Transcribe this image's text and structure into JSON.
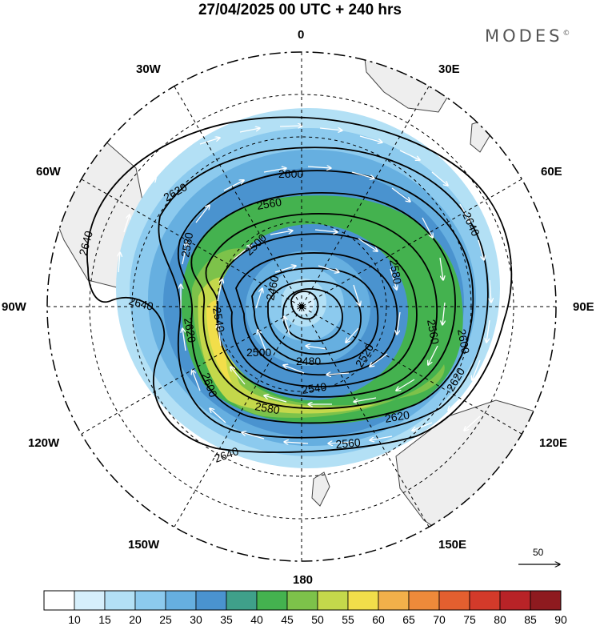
{
  "header": {
    "title": "27/04/2025  00 UTC  + 240 hrs",
    "brand": "MODES",
    "brand_mark": "©"
  },
  "map": {
    "projection": "south-polar-stereographic",
    "longitude_labels": {
      "top": "0",
      "top_right": "30E",
      "right_upper": "60E",
      "right": "90E",
      "right_lower": "120E",
      "bottom_right": "150E",
      "bottom": "180",
      "bottom_left": "150W",
      "left_lower": "120W",
      "left": "90W",
      "left_upper": "60W",
      "top_left": "30W"
    },
    "contour_labels": [
      {
        "id": "c2600a",
        "text": "2600"
      },
      {
        "id": "c2620a",
        "text": "2620"
      },
      {
        "id": "c2640a",
        "text": "2640"
      },
      {
        "id": "c2640b",
        "text": "2640"
      },
      {
        "id": "c2640c",
        "text": "2640"
      },
      {
        "id": "c2640d",
        "text": "2640"
      },
      {
        "id": "c2560a",
        "text": "2560"
      },
      {
        "id": "c2500a",
        "text": "2500"
      },
      {
        "id": "c2580a",
        "text": "2580"
      },
      {
        "id": "c2540a",
        "text": "2540"
      },
      {
        "id": "c2460a",
        "text": "2460"
      },
      {
        "id": "c2620b",
        "text": "2620"
      },
      {
        "id": "c2580b",
        "text": "2580"
      },
      {
        "id": "c2560b",
        "text": "2560"
      },
      {
        "id": "c2600b",
        "text": "2600"
      },
      {
        "id": "c2500b",
        "text": "2500"
      },
      {
        "id": "c2480a",
        "text": "2480"
      },
      {
        "id": "c2520a",
        "text": "2520"
      },
      {
        "id": "c2540b",
        "text": "2540"
      },
      {
        "id": "c2600c",
        "text": "2600"
      },
      {
        "id": "c2580c",
        "text": "2580"
      },
      {
        "id": "c2620c",
        "text": "2620"
      },
      {
        "id": "c2620d",
        "text": "2620"
      },
      {
        "id": "c2560c",
        "text": "2560"
      }
    ],
    "wind_reference": {
      "value": "50"
    }
  },
  "colorbar": {
    "levels": [
      "10",
      "15",
      "20",
      "25",
      "30",
      "35",
      "40",
      "45",
      "50",
      "55",
      "60",
      "65",
      "70",
      "75",
      "80",
      "85",
      "90"
    ],
    "colors": [
      "#ffffff",
      "#d6effb",
      "#b3e0f5",
      "#8ccaee",
      "#66afe0",
      "#4a93cf",
      "#3fa08a",
      "#44b24f",
      "#7dc24a",
      "#c4d84b",
      "#f2de4a",
      "#f2b04a",
      "#ee8a3a",
      "#e35f2f",
      "#d33a2a",
      "#b82327",
      "#8e1a1f"
    ]
  },
  "colors": {
    "land": "#eeeeee",
    "coast": "#444444",
    "contour": "#000000",
    "grid": "#000000"
  }
}
